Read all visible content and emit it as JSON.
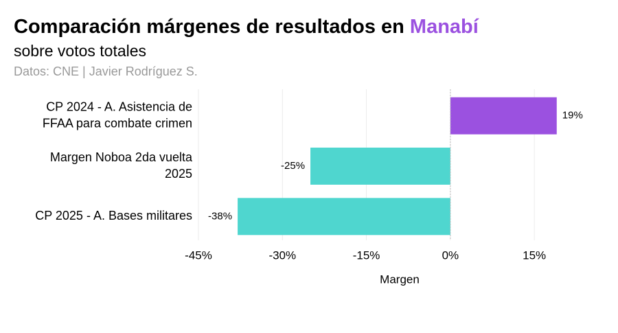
{
  "chart_data": {
    "type": "hbar",
    "title": [
      "Comparación márgenes de resultados en",
      "Manabí"
    ],
    "title_colors": [
      "#000000",
      "#9b51e0"
    ],
    "subtitle": "sobre votos totales",
    "caption": "Datos: CNE | Javier Rodríguez S.",
    "categories": [
      [
        "CP 2024 - A. Asistencia de",
        "FFAA para combate crimen"
      ],
      [
        "Margen Noboa 2da vuelta",
        "2025"
      ],
      [
        "CP 2025 - A. Bases militares"
      ]
    ],
    "values": [
      19,
      -25,
      -38
    ],
    "value_labels": [
      "19%",
      "-25%",
      "-38%"
    ],
    "colors": [
      "#9b51e0",
      "#4fd6cf",
      "#4fd6cf"
    ],
    "xlim": [
      -45,
      27
    ],
    "xticks": [
      {
        "value": -45,
        "label": "-45%"
      },
      {
        "value": -30,
        "label": "-30%"
      },
      {
        "value": -15,
        "label": "-15%"
      },
      {
        "value": 0,
        "label": "0%"
      },
      {
        "value": 15,
        "label": "15%"
      }
    ],
    "xlabel": "Margen",
    "grid": true
  }
}
